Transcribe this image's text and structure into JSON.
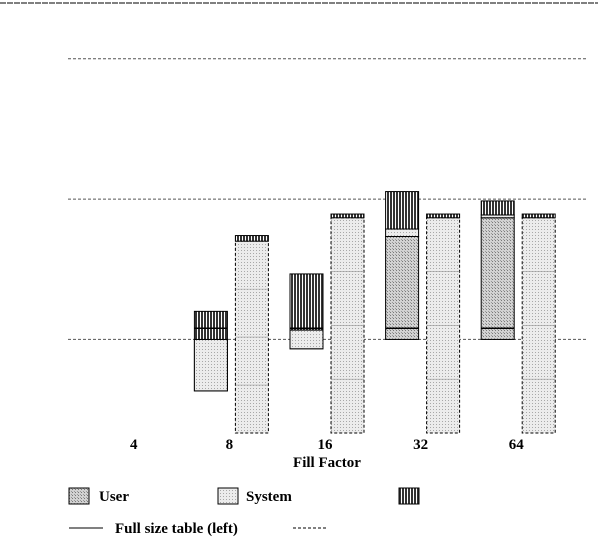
{
  "chart_data": {
    "type": "bar",
    "title": "",
    "xlabel": "Fill Factor",
    "ylabel": "",
    "categories": [
      "4",
      "8",
      "16",
      "32",
      "64"
    ],
    "grid": true,
    "legend_position": "bottom",
    "series": [
      {
        "name": "User",
        "pattern": "stipple-dark",
        "values": [
          0,
          -0.55,
          -0.1,
          1.1,
          1.3
        ]
      },
      {
        "name": "System",
        "pattern": "stipple-light",
        "values": [
          0,
          0.55,
          0.2,
          0.08,
          0.03
        ]
      },
      {
        "name": "",
        "pattern": "vertical-hatch",
        "values": [
          0,
          0.3,
          0.6,
          0.4,
          0.15
        ]
      }
    ],
    "comparison": {
      "name": "Full size table (left)",
      "dashed_label": "",
      "left_top": 0.12,
      "right_values": [
        0,
        1.05,
        1.3,
        1.3,
        1.3
      ],
      "right_cap": [
        0,
        0.06,
        0.04,
        0.04,
        0.04
      ]
    },
    "y_range": [
      -1.0,
      3.2
    ],
    "gridlines": [
      0,
      1.5,
      3.0
    ],
    "legend": {
      "user": "User",
      "system": "System",
      "hatch": "",
      "solid_line": "Full size table (left)",
      "dashed_line": ""
    }
  },
  "colors": {
    "ink": "#000000",
    "grid": "#555555",
    "stipple": "#cfcfcf",
    "stipple_light": "#e6e6e6"
  }
}
